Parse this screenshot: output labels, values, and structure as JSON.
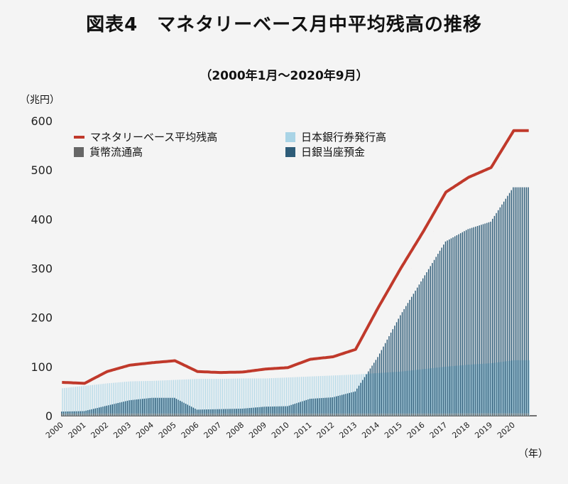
{
  "chart_data": {
    "type": "bar",
    "title": "図表4　マネタリーベース月中平均残高の推移",
    "subtitle": "（2000年1月～2020年9月）",
    "ylabel": "（兆円）",
    "xlabel": "（年）",
    "ylim": [
      0,
      600
    ],
    "yticks": [
      0,
      100,
      200,
      300,
      400,
      500,
      600
    ],
    "x": [
      "2000",
      "2001",
      "2002",
      "2003",
      "2004",
      "2005",
      "2006",
      "2007",
      "2008",
      "2009",
      "2010",
      "2011",
      "2012",
      "2013",
      "2014",
      "2015",
      "2016",
      "2017",
      "2018",
      "2019",
      "2020"
    ],
    "series": [
      {
        "name": "マネタリーベース平均残高",
        "kind": "line",
        "color": "#c0392b",
        "values": [
          68,
          66,
          90,
          103,
          108,
          112,
          90,
          88,
          89,
          95,
          98,
          115,
          120,
          135,
          220,
          300,
          375,
          455,
          485,
          505,
          580
        ]
      },
      {
        "name": "日本銀行券発行高",
        "kind": "bar",
        "color": "#a9d4e6",
        "values": [
          56,
          61,
          66,
          70,
          71,
          73,
          75,
          75,
          76,
          76,
          78,
          80,
          82,
          84,
          87,
          90,
          95,
          100,
          104,
          107,
          113
        ]
      },
      {
        "name": "貨幣流通高",
        "kind": "bar",
        "color": "#666666",
        "values": [
          4.5,
          4.5,
          4.5,
          4.5,
          4.5,
          4.5,
          4.5,
          4.5,
          4.5,
          4.5,
          4.5,
          4.5,
          4.5,
          4.5,
          4.5,
          4.5,
          4.5,
          4.5,
          4.8,
          4.8,
          4.8
        ]
      },
      {
        "name": "日銀当座預金",
        "kind": "bar",
        "color": "#2e5c78",
        "values": [
          4,
          5,
          16,
          27,
          32,
          32,
          8,
          9,
          10,
          14,
          15,
          30,
          33,
          45,
          115,
          200,
          275,
          350,
          375,
          390,
          460
        ]
      }
    ]
  },
  "legend": [
    {
      "label": "マネタリーベース平均残高",
      "color": "#c0392b",
      "shape": "line"
    },
    {
      "label": "日本銀行券発行高",
      "color": "#a9d4e6",
      "shape": "box"
    },
    {
      "label": "貨幣流通高",
      "color": "#666666",
      "shape": "box"
    },
    {
      "label": "日銀当座預金",
      "color": "#2e5c78",
      "shape": "box"
    }
  ]
}
